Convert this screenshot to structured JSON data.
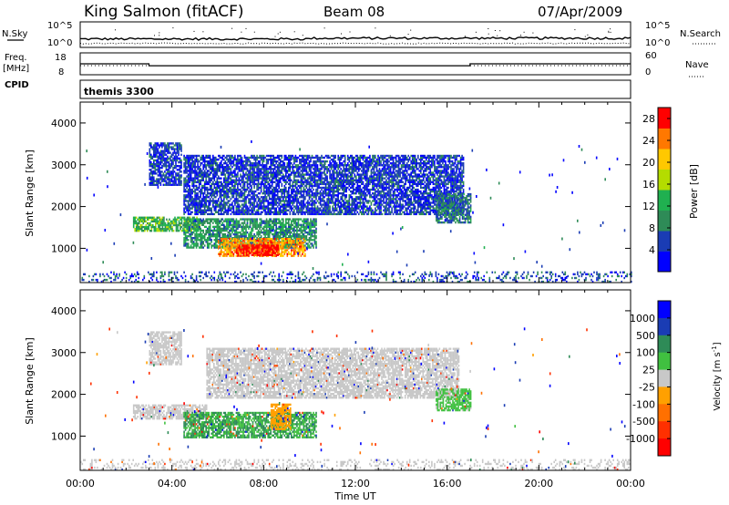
{
  "header": {
    "station": "King Salmon (fitACF)",
    "beam": "Beam 08",
    "date": "07/Apr/2009"
  },
  "strip_labels": {
    "nsky": "N.Sky",
    "freq": "Freq.",
    "freq_unit": "[MHz]",
    "cpid": "CPID",
    "nsearch": "N.Search",
    "nave": "Nave",
    "cpid_value": "themis 3300"
  },
  "chart_data": [
    {
      "type": "line",
      "panel": "noise",
      "yticks_left": [
        "10^5",
        "10^0"
      ],
      "yticks_right": [
        "10^5",
        "10^0"
      ],
      "series": [
        {
          "name": "N.Sky",
          "style": "solid"
        },
        {
          "name": "N.Search",
          "style": "dotted"
        }
      ]
    },
    {
      "type": "line",
      "panel": "frequency",
      "yticks_left": [
        "18",
        "8"
      ],
      "yticks_right": [
        "60",
        "0"
      ],
      "series": [
        {
          "name": "Freq.",
          "style": "solid",
          "points": [
            [
              0,
              12.5
            ],
            [
              3.0,
              12.5
            ],
            [
              3.0,
              11.2
            ],
            [
              17.0,
              11.2
            ],
            [
              17.0,
              12.5
            ],
            [
              24,
              12.5
            ]
          ]
        },
        {
          "name": "Nave",
          "style": "dotted"
        }
      ]
    },
    {
      "type": "heatmap",
      "panel": "power",
      "ylabel": "Slant Range [km]",
      "yticks": [
        "1000",
        "2000",
        "3000",
        "4000"
      ],
      "ylim": [
        180,
        4500
      ],
      "xlim": [
        0,
        24
      ],
      "colorbar_label": "Power [dB]",
      "colorbar_ticks": [
        "4",
        "8",
        "12",
        "16",
        "20",
        "24",
        "28"
      ],
      "colorbar_range": [
        0,
        30
      ],
      "regions": [
        {
          "t0": 3.0,
          "t1": 4.4,
          "r0": 2500,
          "r1": 3500,
          "v": 5
        },
        {
          "t0": 2.3,
          "t1": 5.2,
          "r0": 1400,
          "r1": 1750,
          "v": 13
        },
        {
          "t0": 4.5,
          "t1": 10.3,
          "r0": 1000,
          "r1": 1700,
          "v": 10
        },
        {
          "t0": 6.0,
          "t1": 9.8,
          "r0": 800,
          "r1": 1250,
          "v": 23
        },
        {
          "t0": 6.8,
          "t1": 8.6,
          "r0": 820,
          "r1": 1080,
          "v": 29
        },
        {
          "t0": 4.5,
          "t1": 16.7,
          "r0": 1800,
          "r1": 3200,
          "v": 5
        },
        {
          "t0": 15.5,
          "t1": 17.0,
          "r0": 1600,
          "r1": 2300,
          "v": 8
        },
        {
          "t0": 0,
          "t1": 24,
          "r0": 180,
          "r1": 450,
          "v": 6
        }
      ]
    },
    {
      "type": "heatmap",
      "panel": "velocity",
      "ylabel": "Slant Range [km]",
      "yticks": [
        "1000",
        "2000",
        "3000",
        "4000"
      ],
      "ylim": [
        180,
        4500
      ],
      "xlim": [
        0,
        24
      ],
      "xticks": [
        "00:00",
        "04:00",
        "08:00",
        "12:00",
        "16:00",
        "20:00",
        "00:00"
      ],
      "xlabel": "Time UT",
      "colorbar_label": "Velocity [m s",
      "colorbar_label_exp": "-1",
      "colorbar_ticks": [
        "1000",
        "500",
        "100",
        "25",
        "-25",
        "-100",
        "-500",
        "-1000"
      ],
      "regions": [
        {
          "t0": 3.0,
          "t1": 4.4,
          "r0": 2700,
          "r1": 3500,
          "v": 0
        },
        {
          "t0": 2.3,
          "t1": 5.5,
          "r0": 1400,
          "r1": 1750,
          "v": 0
        },
        {
          "t0": 5.5,
          "t1": 16.5,
          "r0": 1900,
          "r1": 3100,
          "v": 0
        },
        {
          "t0": 4.5,
          "t1": 10.3,
          "r0": 950,
          "r1": 1550,
          "v": 60
        },
        {
          "t0": 8.3,
          "t1": 9.2,
          "r0": 1150,
          "r1": 1750,
          "v": -70
        },
        {
          "t0": 15.5,
          "t1": 17.0,
          "r0": 1600,
          "r1": 2100,
          "v": 40
        },
        {
          "t0": 0,
          "t1": 24,
          "r0": 180,
          "r1": 450,
          "v": 0
        }
      ]
    }
  ],
  "colors": {
    "power_scale": [
      "#0000ff",
      "#1a3cb4",
      "#2e8b57",
      "#20b050",
      "#b4dc00",
      "#ffc800",
      "#ff7800",
      "#ff0000"
    ],
    "velocity_scale": [
      "#0000ff",
      "#1a3cb4",
      "#2e8b57",
      "#40c040",
      "#c8c8c8",
      "#ffa000",
      "#ff7000",
      "#ff3000",
      "#ff0000"
    ]
  }
}
